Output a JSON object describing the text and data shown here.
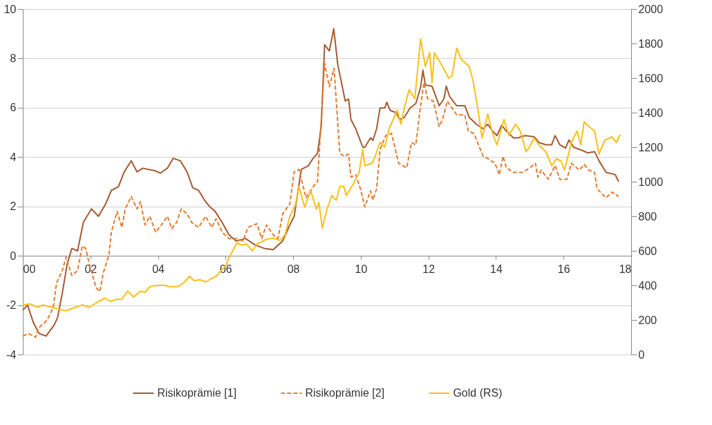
{
  "chart_data": {
    "type": "line",
    "xlim": [
      0,
      18
    ],
    "xticks": [
      {
        "value": 0,
        "label": "00"
      },
      {
        "value": 2,
        "label": "02"
      },
      {
        "value": 4,
        "label": "04"
      },
      {
        "value": 6,
        "label": "06"
      },
      {
        "value": 8,
        "label": "08"
      },
      {
        "value": 10,
        "label": "10"
      },
      {
        "value": 12,
        "label": "12"
      },
      {
        "value": 14,
        "label": "14"
      },
      {
        "value": 16,
        "label": "16"
      },
      {
        "value": 18,
        "label": "18"
      }
    ],
    "ylim": [
      -4,
      10
    ],
    "yticks": [
      -4,
      -2,
      0,
      2,
      4,
      6,
      8,
      10
    ],
    "y2lim": [
      0,
      2000
    ],
    "y2ticks": [
      0,
      200,
      400,
      600,
      800,
      1000,
      1200,
      1400,
      1600,
      1800,
      2000
    ],
    "grid": "y",
    "legend": "bottom",
    "series": [
      {
        "name": "Risikoprämie [1]",
        "color": "#a5592f",
        "line_style": "solid",
        "x": [
          0,
          0.14,
          0.31,
          0.48,
          0.69,
          0.93,
          1.03,
          1.17,
          1.31,
          1.45,
          1.62,
          1.79,
          2.03,
          2.24,
          2.45,
          2.62,
          2.83,
          3.0,
          3.21,
          3.38,
          3.55,
          3.9,
          4.07,
          4.28,
          4.45,
          4.66,
          4.86,
          5.03,
          5.2,
          5.38,
          5.52,
          5.69,
          5.9,
          6.1,
          6.31,
          6.59,
          6.86,
          7.14,
          7.41,
          7.69,
          7.9,
          8.03,
          8.24,
          8.45,
          8.59,
          8.72,
          8.83,
          8.93,
          9.07,
          9.2,
          9.32,
          9.54,
          9.64,
          9.71,
          9.85,
          10.06,
          10.12,
          10.29,
          10.36,
          10.47,
          10.57,
          10.71,
          10.77,
          10.87,
          11.05,
          11.15,
          11.29,
          11.46,
          11.63,
          11.77,
          11.84,
          11.91,
          12.11,
          12.32,
          12.46,
          12.53,
          12.63,
          12.84,
          13.08,
          13.21,
          13.42,
          13.62,
          13.76,
          13.9,
          14.03,
          14.17,
          14.31,
          14.52,
          14.65,
          14.86,
          15.13,
          15.27,
          15.48,
          15.65,
          15.75,
          15.89,
          16.06,
          16.16,
          16.3,
          16.57,
          16.71,
          16.92,
          17.05,
          17.26,
          17.53,
          17.63
        ],
        "values": [
          -2.2,
          -2.0,
          -2.7,
          -3.15,
          -3.25,
          -2.8,
          -2.5,
          -1.5,
          -0.35,
          0.3,
          0.2,
          1.35,
          1.9,
          1.6,
          2.1,
          2.65,
          2.8,
          3.4,
          3.85,
          3.4,
          3.55,
          3.45,
          3.35,
          3.55,
          3.95,
          3.85,
          3.4,
          2.75,
          2.65,
          2.25,
          2.0,
          1.8,
          1.35,
          0.85,
          0.6,
          0.7,
          0.45,
          0.3,
          0.25,
          0.6,
          1.25,
          1.6,
          3.5,
          3.65,
          3.95,
          4.15,
          5.25,
          8.55,
          8.3,
          9.2,
          7.75,
          6.27,
          6.35,
          5.52,
          5.15,
          4.4,
          4.4,
          4.78,
          4.68,
          5.15,
          5.99,
          5.99,
          6.22,
          5.89,
          5.8,
          5.52,
          5.61,
          5.99,
          6.17,
          6.82,
          7.52,
          6.92,
          6.87,
          6.08,
          6.36,
          6.87,
          6.45,
          6.08,
          6.08,
          5.61,
          5.33,
          5.15,
          5.33,
          5.05,
          4.87,
          5.29,
          5.05,
          4.78,
          4.78,
          4.87,
          4.82,
          4.59,
          4.5,
          4.5,
          4.87,
          4.5,
          4.36,
          4.69,
          4.4,
          4.26,
          4.17,
          4.22,
          3.85,
          3.38,
          3.29,
          3.0
        ]
      },
      {
        "name": "Risikoprämie [2]",
        "color": "#e57b2e",
        "line_style": "dashed",
        "x": [
          0,
          0.17,
          0.38,
          0.45,
          0.72,
          0.9,
          1.0,
          1.17,
          1.28,
          1.45,
          1.62,
          1.76,
          1.86,
          1.97,
          2.17,
          2.28,
          2.38,
          2.55,
          2.62,
          2.79,
          2.93,
          3.03,
          3.21,
          3.38,
          3.48,
          3.62,
          3.76,
          3.93,
          4.1,
          4.28,
          4.41,
          4.55,
          4.69,
          4.86,
          5.0,
          5.2,
          5.41,
          5.59,
          5.72,
          5.9,
          6.1,
          6.31,
          6.52,
          6.66,
          6.93,
          7.07,
          7.21,
          7.41,
          7.55,
          7.69,
          7.9,
          8.03,
          8.17,
          8.38,
          8.59,
          8.72,
          8.93,
          9.07,
          9.21,
          9.38,
          9.51,
          9.64,
          9.71,
          9.85,
          9.99,
          10.12,
          10.29,
          10.36,
          10.47,
          10.57,
          10.74,
          10.91,
          11.12,
          11.36,
          11.5,
          11.63,
          11.77,
          11.87,
          11.98,
          12.15,
          12.32,
          12.42,
          12.56,
          12.84,
          13.08,
          13.18,
          13.35,
          13.62,
          13.76,
          13.97,
          14.1,
          14.21,
          14.31,
          14.52,
          14.79,
          15.0,
          15.17,
          15.24,
          15.34,
          15.55,
          15.75,
          15.89,
          16.1,
          16.23,
          16.47,
          16.61,
          16.75,
          16.92,
          16.99,
          17.26,
          17.43,
          17.63
        ],
        "values": [
          -3.25,
          -3.15,
          -3.3,
          -2.95,
          -2.6,
          -2.1,
          -1.1,
          -0.6,
          -0.05,
          -0.8,
          -0.6,
          0.4,
          0.3,
          -0.35,
          -1.3,
          -1.45,
          -0.7,
          0.05,
          0.95,
          1.8,
          1.15,
          1.9,
          2.4,
          1.9,
          2.2,
          1.25,
          1.6,
          0.95,
          1.25,
          1.6,
          1.1,
          1.35,
          1.9,
          1.7,
          1.35,
          1.15,
          1.6,
          1.15,
          1.5,
          0.95,
          0.7,
          0.7,
          0.6,
          1.15,
          1.3,
          0.7,
          1.25,
          0.85,
          0.7,
          1.7,
          2.1,
          3.4,
          3.5,
          2.35,
          2.8,
          3.0,
          7.8,
          6.85,
          7.6,
          4.15,
          4.03,
          4.12,
          3.19,
          3.28,
          2.72,
          1.98,
          2.63,
          2.26,
          2.72,
          4.31,
          4.87,
          4.96,
          3.75,
          3.56,
          4.59,
          4.5,
          6.08,
          7.01,
          6.36,
          6.27,
          5.24,
          5.52,
          6.27,
          5.71,
          5.71,
          5.05,
          4.96,
          4.03,
          3.94,
          3.75,
          3.28,
          4.03,
          3.56,
          3.38,
          3.38,
          3.56,
          3.75,
          3.19,
          3.47,
          3.1,
          3.66,
          3.1,
          3.1,
          3.75,
          3.47,
          3.7,
          3.47,
          3.38,
          2.72,
          2.35,
          2.58,
          2.4
        ]
      },
      {
        "name": "Gold (RS)",
        "color": "#fcbf17",
        "line_style": "solid",
        "axis": "y2",
        "x": [
          0,
          0.21,
          0.45,
          0.59,
          0.86,
          1.28,
          1.55,
          1.76,
          1.97,
          2.24,
          2.45,
          2.59,
          2.79,
          2.93,
          3.1,
          3.28,
          3.48,
          3.62,
          3.76,
          3.97,
          4.24,
          4.31,
          4.59,
          4.79,
          4.93,
          5.07,
          5.24,
          5.41,
          5.59,
          5.72,
          6.0,
          6.1,
          6.34,
          6.48,
          6.62,
          6.79,
          6.93,
          7.07,
          7.21,
          7.41,
          7.62,
          7.76,
          7.9,
          8.07,
          8.17,
          8.34,
          8.52,
          8.69,
          8.76,
          8.86,
          9.0,
          9.14,
          9.28,
          9.38,
          9.5,
          9.57,
          9.78,
          9.95,
          10.06,
          10.12,
          10.33,
          10.4,
          10.57,
          10.71,
          10.84,
          11.08,
          11.19,
          11.29,
          11.43,
          11.6,
          11.77,
          11.91,
          12.04,
          12.11,
          12.18,
          12.46,
          12.6,
          12.7,
          12.84,
          12.98,
          13.21,
          13.32,
          13.46,
          13.59,
          13.76,
          13.9,
          14.03,
          14.24,
          14.38,
          14.58,
          14.72,
          14.89,
          14.99,
          15.13,
          15.27,
          15.48,
          15.65,
          15.79,
          15.93,
          16.03,
          16.23,
          16.4,
          16.51,
          16.61,
          16.75,
          16.92,
          17.05,
          17.22,
          17.43,
          17.57,
          17.67
        ],
        "values": [
          287,
          293,
          273,
          287,
          273,
          253,
          273,
          287,
          273,
          307,
          327,
          307,
          320,
          320,
          367,
          333,
          367,
          360,
          393,
          400,
          400,
          393,
          393,
          420,
          453,
          427,
          433,
          420,
          440,
          453,
          513,
          560,
          647,
          633,
          640,
          600,
          640,
          653,
          667,
          673,
          660,
          693,
          800,
          867,
          973,
          853,
          947,
          840,
          880,
          733,
          840,
          920,
          893,
          973,
          973,
          920,
          987,
          1053,
          1187,
          1093,
          1107,
          1133,
          1227,
          1200,
          1307,
          1413,
          1333,
          1427,
          1533,
          1480,
          1827,
          1667,
          1747,
          1573,
          1747,
          1653,
          1600,
          1613,
          1773,
          1707,
          1667,
          1587,
          1427,
          1253,
          1393,
          1280,
          1213,
          1360,
          1267,
          1333,
          1293,
          1173,
          1200,
          1253,
          1213,
          1173,
          1093,
          1133,
          1120,
          1067,
          1227,
          1293,
          1213,
          1347,
          1320,
          1293,
          1160,
          1240,
          1260,
          1227,
          1273
        ]
      }
    ]
  }
}
